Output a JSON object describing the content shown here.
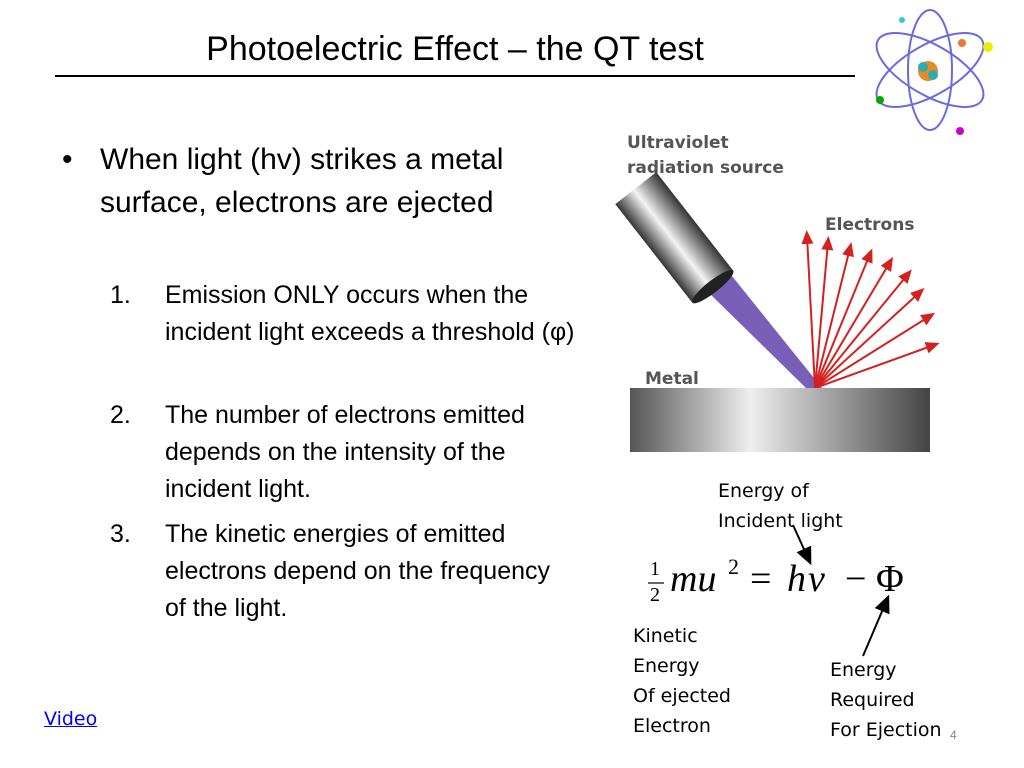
{
  "header": {
    "title": "Photoelectric Effect – the QT test"
  },
  "bullet": {
    "text": "When light (hv) strikes a metal surface, electrons are ejected",
    "items": [
      {
        "marker": "1.",
        "text": "Emission ONLY occurs when the incident light exceeds a threshold (φ)"
      },
      {
        "marker": "2.",
        "text": "The number of electrons emitted depends on the intensity of the incident light."
      },
      {
        "marker": "3.",
        "text": "The kinetic energies of emitted electrons depend on the frequency of the light."
      }
    ]
  },
  "diagram": {
    "source_label": [
      "Ultraviolet",
      "radiation source"
    ],
    "electrons_label": "Electrons",
    "metal_label": "Metal"
  },
  "equation": {
    "numerator": "1",
    "denominator": "2",
    "lhs": "mu",
    "exponent": "2",
    "equals": "=",
    "h": "h",
    "nu": "ν",
    "minus": "−",
    "phi": "Φ"
  },
  "annotations": {
    "incident": [
      "Energy of",
      "Incident light"
    ],
    "kinetic": [
      "Kinetic",
      "Energy",
      "Of ejected",
      "Electron"
    ],
    "required": [
      "Energy",
      "Required",
      "For Ejection"
    ]
  },
  "link": "Video",
  "page_number": "4"
}
